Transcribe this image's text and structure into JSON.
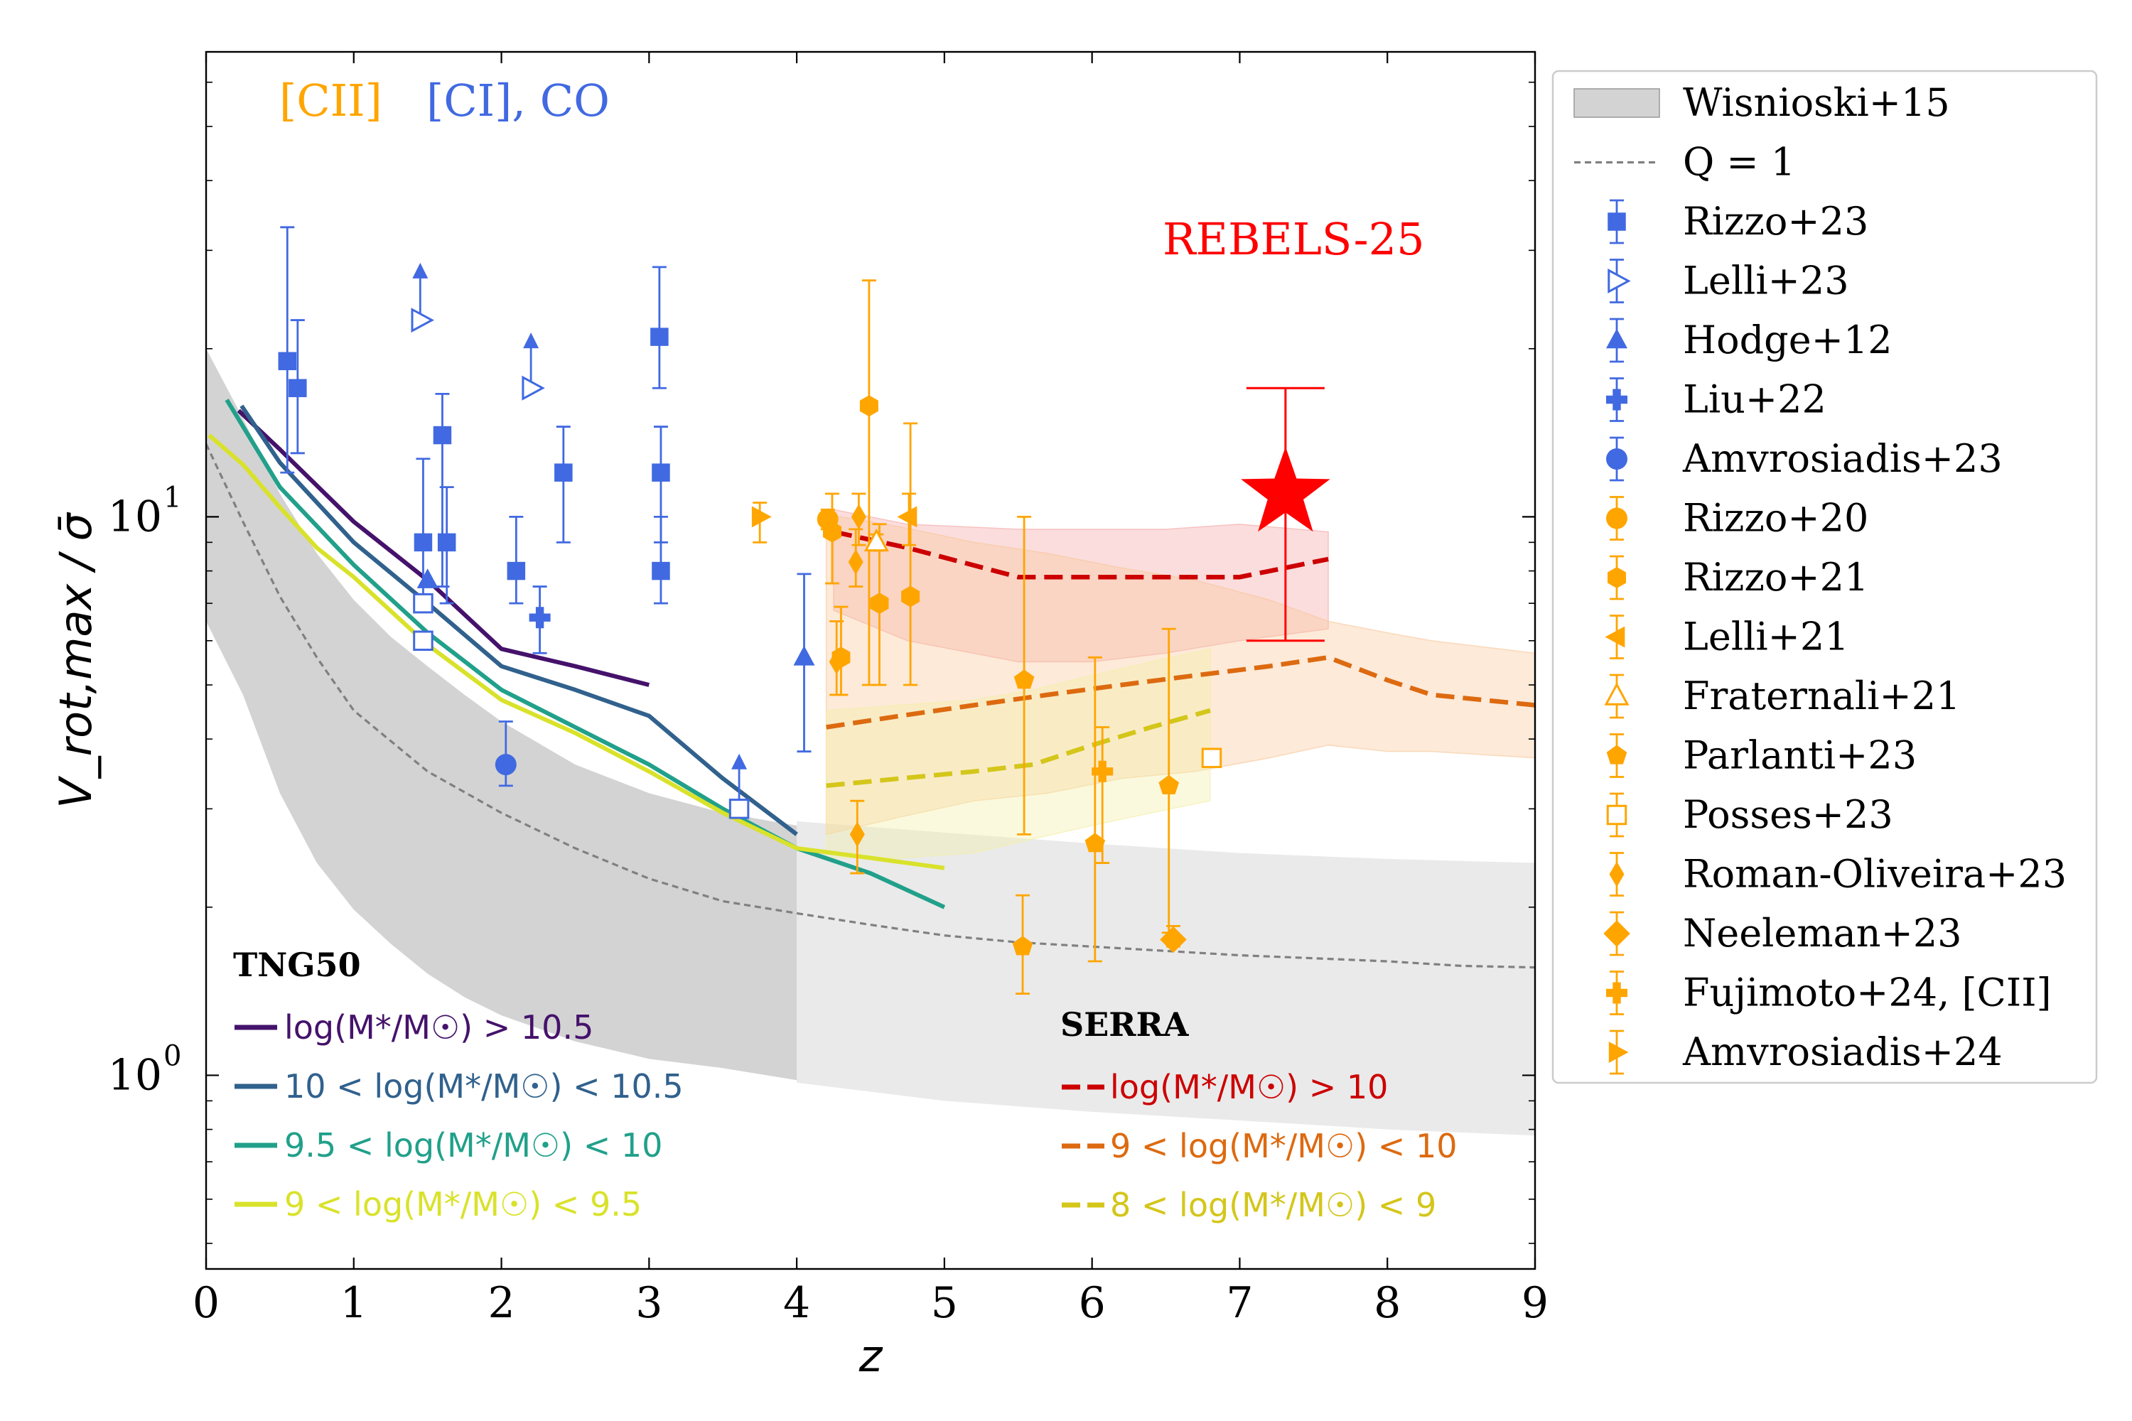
{
  "chart_data": {
    "type": "scatter",
    "xlabel": "z",
    "ylabel": "V_rot,max / σ̄",
    "xlim": [
      0,
      9
    ],
    "ylim": [
      0.45,
      68
    ],
    "yscale": "log",
    "x_ticks": [
      "0",
      "1",
      "2",
      "3",
      "4",
      "5",
      "6",
      "7",
      "8",
      "9"
    ],
    "y_ticks": [
      {
        "value": 1,
        "base": "10",
        "exp": "0"
      },
      {
        "value": 10,
        "base": "10",
        "exp": "1"
      }
    ],
    "tracer_labels": {
      "cii": {
        "text": "[CII]",
        "color": "#FFA500"
      },
      "ci_co": {
        "text": "[CI], CO",
        "color": "#4169E1"
      }
    },
    "highlight": {
      "label": "REBELS-25",
      "color": "#FF0000",
      "x": 7.31,
      "y": 11.0,
      "y_err": [
        6.0,
        17.0
      ]
    },
    "legend": {
      "position": "outside right",
      "entries": [
        {
          "label": "Wisnioski+15",
          "kind": "band",
          "color": "#BBBBBB"
        },
        {
          "label": "Q = 1",
          "kind": "dashed",
          "color": "#808080"
        },
        {
          "label": "Rizzo+23",
          "kind": "marker",
          "marker": "square",
          "color": "#4169E1"
        },
        {
          "label": "Lelli+23",
          "kind": "marker",
          "marker": "triangle-right-open",
          "color": "#4169E1"
        },
        {
          "label": "Hodge+12",
          "kind": "marker",
          "marker": "triangle-up",
          "color": "#4169E1"
        },
        {
          "label": "Liu+22",
          "kind": "marker",
          "marker": "plus",
          "color": "#4169E1"
        },
        {
          "label": "Amvrosiadis+23",
          "kind": "marker",
          "marker": "circle",
          "color": "#4169E1"
        },
        {
          "label": "Rizzo+20",
          "kind": "marker",
          "marker": "circle",
          "color": "#FFA500"
        },
        {
          "label": "Rizzo+21",
          "kind": "marker",
          "marker": "hexagon",
          "color": "#FFA500"
        },
        {
          "label": "Lelli+21",
          "kind": "marker",
          "marker": "triangle-left",
          "color": "#FFA500"
        },
        {
          "label": "Fraternali+21",
          "kind": "marker",
          "marker": "triangle-up-open",
          "color": "#FFA500"
        },
        {
          "label": "Parlanti+23",
          "kind": "marker",
          "marker": "pentagon",
          "color": "#FFA500"
        },
        {
          "label": "Posses+23",
          "kind": "marker",
          "marker": "square-open",
          "color": "#FFA500"
        },
        {
          "label": "Roman-Oliveira+23",
          "kind": "marker",
          "marker": "thin-diamond",
          "color": "#FFA500"
        },
        {
          "label": "Neeleman+23",
          "kind": "marker",
          "marker": "diamond",
          "color": "#FFA500"
        },
        {
          "label": "Fujimoto+24, [CII]",
          "kind": "marker",
          "marker": "plus",
          "color": "#FFA500"
        },
        {
          "label": "Amvrosiadis+24",
          "kind": "marker",
          "marker": "triangle-right",
          "color": "#FFA500"
        }
      ]
    },
    "wisnioski_band": {
      "color": "#BBBBBB",
      "x": [
        0,
        0.25,
        0.5,
        0.75,
        1,
        1.25,
        1.5,
        1.75,
        2,
        2.5,
        3,
        3.5,
        4
      ],
      "lower": [
        6.5,
        4.8,
        3.2,
        2.4,
        1.98,
        1.72,
        1.52,
        1.38,
        1.28,
        1.15,
        1.07,
        1.03,
        0.98
      ],
      "upper": [
        20,
        15,
        11,
        8.6,
        7.1,
        6.1,
        5.4,
        4.8,
        4.3,
        3.6,
        3.2,
        2.95,
        2.8
      ],
      "extrapolated": {
        "x": [
          4,
          5,
          6,
          7,
          8,
          9
        ],
        "lower": [
          0.97,
          0.9,
          0.86,
          0.83,
          0.8,
          0.78
        ],
        "upper": [
          2.85,
          2.72,
          2.6,
          2.5,
          2.44,
          2.4
        ]
      }
    },
    "q1_line": {
      "x": [
        0,
        0.25,
        0.5,
        0.75,
        1,
        1.5,
        2,
        2.5,
        3,
        3.5,
        4,
        4.5,
        5,
        5.5,
        6,
        6.5,
        7,
        7.5,
        8,
        8.5,
        9
      ],
      "y": [
        13.5,
        9.8,
        7.2,
        5.6,
        4.5,
        3.5,
        2.95,
        2.55,
        2.25,
        2.05,
        1.95,
        1.86,
        1.78,
        1.73,
        1.7,
        1.67,
        1.64,
        1.62,
        1.6,
        1.57,
        1.56
      ]
    },
    "tng50": {
      "title": "TNG50",
      "series": [
        {
          "name": "log(M*/M☉) > 10.5",
          "color": "#45126B",
          "x": [
            0.22,
            0.5,
            1,
            1.5,
            2,
            2.5,
            3
          ],
          "y": [
            15.5,
            13.2,
            9.8,
            7.7,
            5.8,
            5.4,
            5.0
          ]
        },
        {
          "name": "10 < log(M*/M☉) < 10.5",
          "color": "#31618D",
          "x": [
            0.24,
            0.5,
            1,
            1.5,
            2,
            2.5,
            3,
            3.5,
            4
          ],
          "y": [
            15.8,
            12.5,
            9.0,
            7.0,
            5.4,
            4.9,
            4.4,
            3.4,
            2.7
          ]
        },
        {
          "name": "9.5 < log(M*/M☉) < 10",
          "color": "#21A08A",
          "x": [
            0.14,
            0.5,
            1,
            1.5,
            2,
            2.5,
            3,
            3.5,
            4,
            4.5,
            5
          ],
          "y": [
            16.2,
            11.3,
            8.2,
            6.2,
            4.9,
            4.2,
            3.6,
            3.0,
            2.55,
            2.3,
            2.0
          ]
        },
        {
          "name": "9 < log(M*/M☉) < 9.5",
          "color": "#D9E22B",
          "x": [
            0.02,
            0.25,
            0.5,
            0.75,
            1,
            1.5,
            2,
            2.5,
            3,
            3.5,
            4,
            4.5,
            5
          ],
          "y": [
            14.0,
            12.4,
            10.4,
            8.8,
            7.8,
            5.9,
            4.7,
            4.1,
            3.5,
            2.95,
            2.55,
            2.45,
            2.35
          ]
        }
      ]
    },
    "serra": {
      "title": "SERRA",
      "series": [
        {
          "name": "log(M*/M☉) > 10",
          "color": "#CC0000",
          "fill": "#F4A6A6",
          "x": [
            4.25,
            4.75,
            5.5,
            6.0,
            6.5,
            7.0,
            7.6
          ],
          "y": [
            9.4,
            8.8,
            7.8,
            7.8,
            7.8,
            7.8,
            8.4
          ],
          "lower": [
            6.8,
            6.0,
            5.5,
            5.5,
            5.7,
            6.0,
            6.3
          ],
          "upper": [
            10.3,
            9.7,
            9.5,
            9.5,
            9.5,
            9.7,
            9.4
          ]
        },
        {
          "name": "9 < log(M*/M☉) < 10",
          "color": "#DD6A10",
          "fill": "#F9C79A",
          "x": [
            4.2,
            4.7,
            5.2,
            5.7,
            6.2,
            6.7,
            7.2,
            7.6,
            8.0,
            8.3,
            9.0
          ],
          "y": [
            4.2,
            4.4,
            4.6,
            4.8,
            5.0,
            5.2,
            5.4,
            5.6,
            5.1,
            4.8,
            4.6
          ],
          "lower": [
            2.7,
            2.9,
            3.1,
            3.2,
            3.4,
            3.5,
            3.7,
            3.9,
            3.8,
            3.8,
            3.7
          ],
          "upper": [
            10.1,
            9.6,
            9.0,
            8.6,
            8.1,
            7.7,
            7.1,
            6.5,
            6.2,
            6.0,
            5.7
          ]
        },
        {
          "name": "8 < log(M*/M☉) < 9",
          "color": "#D4C61A",
          "fill": "#F3EFA5",
          "x": [
            4.2,
            4.7,
            5.2,
            5.6,
            6.0,
            6.4,
            6.8
          ],
          "y": [
            3.3,
            3.4,
            3.5,
            3.6,
            3.9,
            4.2,
            4.5
          ],
          "lower": [
            2.45,
            2.45,
            2.5,
            2.65,
            2.8,
            2.95,
            3.1
          ],
          "upper": [
            4.5,
            4.6,
            4.7,
            4.9,
            5.2,
            5.5,
            5.8
          ]
        }
      ]
    },
    "points": [
      {
        "dataset": "Rizzo+23",
        "marker": "square",
        "color": "#4169E1",
        "x": 0.55,
        "y": 19.0,
        "err": [
          12.0,
          33.0
        ]
      },
      {
        "dataset": "Rizzo+23",
        "marker": "square",
        "color": "#4169E1",
        "x": 0.62,
        "y": 17.0,
        "err": [
          13.0,
          22.5
        ]
      },
      {
        "dataset": "Rizzo+23",
        "marker": "square",
        "color": "#4169E1",
        "x": 1.47,
        "y": 9.0,
        "err": [
          6.8,
          12.7
        ]
      },
      {
        "dataset": "Rizzo+23",
        "marker": "square",
        "color": "#4169E1",
        "x": 1.63,
        "y": 9.0,
        "err": [
          7.0,
          11.3
        ]
      },
      {
        "dataset": "Rizzo+23",
        "marker": "square",
        "color": "#4169E1",
        "x": 1.6,
        "y": 14.0,
        "err": [
          7.5,
          16.6
        ]
      },
      {
        "dataset": "Rizzo+23",
        "marker": "square",
        "color": "#4169E1",
        "x": 2.1,
        "y": 8.0,
        "err": [
          7.0,
          10.0
        ]
      },
      {
        "dataset": "Rizzo+23",
        "marker": "square",
        "color": "#4169E1",
        "x": 2.42,
        "y": 12.0,
        "err": [
          9.0,
          14.5
        ]
      },
      {
        "dataset": "Rizzo+23",
        "marker": "square",
        "color": "#4169E1",
        "x": 3.07,
        "y": 21.0,
        "err": [
          17.0,
          28.0
        ]
      },
      {
        "dataset": "Rizzo+23",
        "marker": "square",
        "color": "#4169E1",
        "x": 3.08,
        "y": 12.0,
        "err": [
          9.0,
          14.5
        ]
      },
      {
        "dataset": "Rizzo+23",
        "marker": "square",
        "color": "#4169E1",
        "x": 3.08,
        "y": 8.0,
        "err": [
          7.0,
          10.0
        ]
      },
      {
        "dataset": "Lelli+23",
        "marker": "triangle-right-open",
        "color": "#4169E1",
        "x": 1.45,
        "y": 22.5,
        "arrow": 28.0
      },
      {
        "dataset": "Lelli+23",
        "marker": "triangle-right-open",
        "color": "#4169E1",
        "x": 2.2,
        "y": 17.0,
        "arrow": 21.0
      },
      {
        "dataset": "Hodge+12",
        "marker": "triangle-up",
        "color": "#4169E1",
        "x": 4.05,
        "y": 5.6,
        "err": [
          3.8,
          7.9
        ]
      },
      {
        "dataset": "Hodge+12",
        "marker": "triangle-up",
        "color": "#4169E1",
        "x": 1.5,
        "y": 7.7,
        "arrow": 7.9
      },
      {
        "dataset": "Liu+22",
        "marker": "plus",
        "color": "#4169E1",
        "x": 2.26,
        "y": 6.6,
        "err": [
          5.7,
          7.5
        ]
      },
      {
        "dataset": "Amvrosiadis+23",
        "marker": "circle",
        "color": "#4169E1",
        "x": 2.03,
        "y": 3.6,
        "err": [
          3.3,
          4.3
        ]
      },
      {
        "dataset": "Rizzo+20",
        "marker": "circle",
        "color": "#FFA500",
        "x": 4.21,
        "y": 9.9,
        "err": [
          9.5,
          10.3
        ]
      },
      {
        "dataset": "Rizzo+21",
        "marker": "hexagon",
        "color": "#FFA500",
        "x": 4.24,
        "y": 9.4,
        "err": [
          7.6,
          11.0
        ]
      },
      {
        "dataset": "Rizzo+21",
        "marker": "hexagon",
        "color": "#FFA500",
        "x": 4.49,
        "y": 15.8,
        "err": [
          5.0,
          26.5
        ]
      },
      {
        "dataset": "Rizzo+21",
        "marker": "hexagon",
        "color": "#FFA500",
        "x": 4.56,
        "y": 7.0,
        "err": [
          5.0,
          9.7
        ]
      },
      {
        "dataset": "Rizzo+21",
        "marker": "hexagon",
        "color": "#FFA500",
        "x": 4.77,
        "y": 7.2,
        "err": [
          5.0,
          14.7
        ]
      },
      {
        "dataset": "Rizzo+21",
        "marker": "hexagon",
        "color": "#FFA500",
        "x": 4.3,
        "y": 5.6,
        "err": [
          4.8,
          6.9
        ]
      },
      {
        "dataset": "Lelli+21",
        "marker": "triangle-left",
        "color": "#FFA500",
        "x": 4.76,
        "y": 10.0,
        "err": [
          8.9,
          11.0
        ]
      },
      {
        "dataset": "Fraternali+21",
        "marker": "triangle-up-open",
        "color": "#FFA500",
        "x": 4.54,
        "y": 9.0,
        "err": [
          8.7,
          9.3
        ]
      },
      {
        "dataset": "Parlanti+23",
        "marker": "pentagon",
        "color": "#FFA500",
        "x": 5.54,
        "y": 5.1,
        "err": [
          2.7,
          10.0
        ]
      },
      {
        "dataset": "Parlanti+23",
        "marker": "pentagon",
        "color": "#FFA500",
        "x": 5.53,
        "y": 1.7,
        "err": [
          1.4,
          2.1
        ]
      },
      {
        "dataset": "Parlanti+23",
        "marker": "pentagon",
        "color": "#FFA500",
        "x": 6.02,
        "y": 2.6,
        "err": [
          1.6,
          5.6
        ]
      },
      {
        "dataset": "Parlanti+23",
        "marker": "pentagon",
        "color": "#FFA500",
        "x": 6.52,
        "y": 3.3,
        "err": [
          1.8,
          6.3
        ]
      },
      {
        "dataset": "Posses+23",
        "marker": "square-open",
        "color": "#4169E1",
        "x": 1.47,
        "y": 7.0
      },
      {
        "dataset": "Posses+23",
        "marker": "square-open",
        "color": "#4169E1",
        "x": 1.47,
        "y": 6.0
      },
      {
        "dataset": "Posses+23",
        "marker": "square-open",
        "color": "#4169E1",
        "x": 3.61,
        "y": 3.0,
        "arrow": 3.7
      },
      {
        "dataset": "Posses+23",
        "marker": "square-open",
        "color": "#FFA500",
        "x": 6.81,
        "y": 3.7
      },
      {
        "dataset": "Roman-Oliveira+23",
        "marker": "thin-diamond",
        "color": "#FFA500",
        "x": 4.4,
        "y": 8.3,
        "err": [
          7.5,
          9.5
        ]
      },
      {
        "dataset": "Roman-Oliveira+23",
        "marker": "thin-diamond",
        "color": "#FFA500",
        "x": 4.27,
        "y": 5.5,
        "err": [
          4.8,
          6.5
        ]
      },
      {
        "dataset": "Roman-Oliveira+23",
        "marker": "thin-diamond",
        "color": "#FFA500",
        "x": 4.42,
        "y": 10.0,
        "err": [
          8.9,
          11.0
        ]
      },
      {
        "dataset": "Roman-Oliveira+23",
        "marker": "thin-diamond",
        "color": "#FFA500",
        "x": 4.41,
        "y": 2.7,
        "err": [
          2.3,
          3.1
        ]
      },
      {
        "dataset": "Neeleman+23",
        "marker": "diamond",
        "color": "#FFA500",
        "x": 6.55,
        "y": 1.75,
        "err": [
          1.7,
          1.85
        ]
      },
      {
        "dataset": "Fujimoto+24, [CII]",
        "marker": "plus",
        "color": "#FFA500",
        "x": 6.07,
        "y": 3.5,
        "err": [
          2.4,
          4.2
        ]
      },
      {
        "dataset": "Amvrosiadis+24",
        "marker": "triangle-right",
        "color": "#FFA500",
        "x": 3.75,
        "y": 10.0,
        "err": [
          9.0,
          10.6
        ]
      }
    ]
  }
}
